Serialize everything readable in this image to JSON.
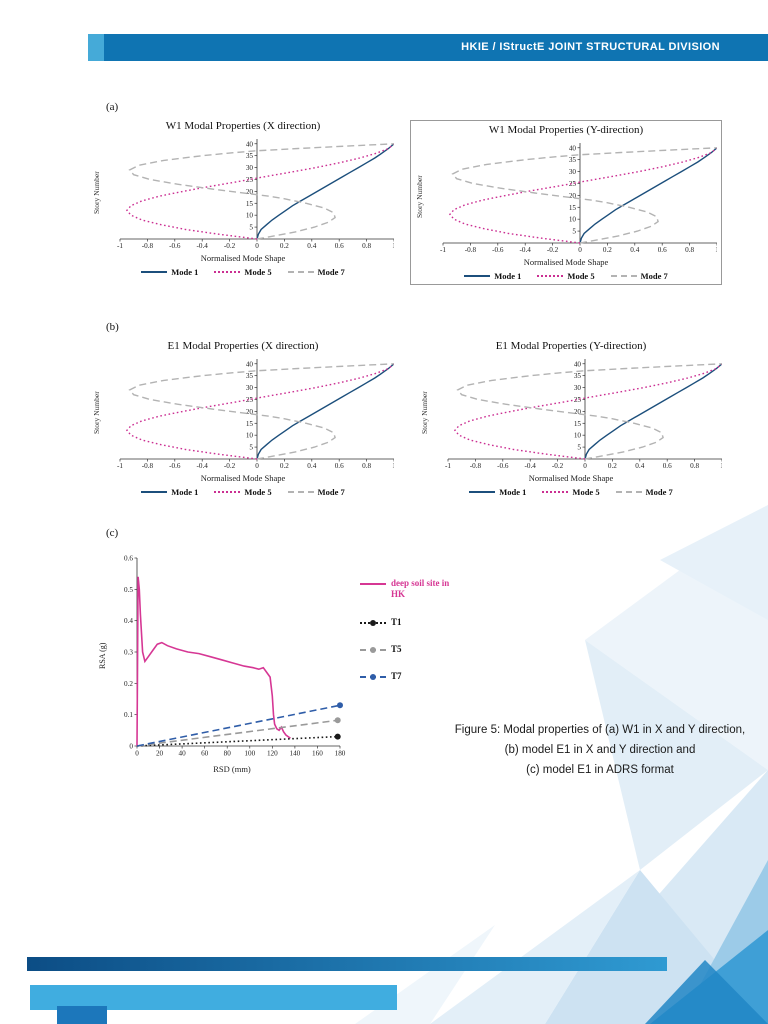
{
  "header": {
    "title": "HKIE / IStructE JOINT STRUCTURAL DIVISION",
    "bar_color": "#0f74b2",
    "accent_color": "#45aad8"
  },
  "sections": {
    "a_label": "(a)",
    "b_label": "(b)",
    "c_label": "(c)"
  },
  "caption": {
    "line1": "Figure 5: Modal properties of (a) W1 in X and Y direction,",
    "line2": "(b) model E1 in X and Y direction and",
    "line3": "(c) model E1 in ADRS format"
  },
  "chart_data": {
    "mode_shape_library": {
      "mode1": {
        "label": "Mode 1",
        "color": "#1c4f7c",
        "dash": "solid",
        "points": [
          [
            0,
            0
          ],
          [
            2,
            0.01
          ],
          [
            4,
            0.03
          ],
          [
            6,
            0.07
          ],
          [
            8,
            0.11
          ],
          [
            10,
            0.16
          ],
          [
            12,
            0.21
          ],
          [
            14,
            0.26
          ],
          [
            16,
            0.32
          ],
          [
            18,
            0.38
          ],
          [
            20,
            0.44
          ],
          [
            22,
            0.5
          ],
          [
            24,
            0.56
          ],
          [
            26,
            0.62
          ],
          [
            28,
            0.68
          ],
          [
            30,
            0.74
          ],
          [
            32,
            0.8
          ],
          [
            34,
            0.86
          ],
          [
            36,
            0.91
          ],
          [
            38,
            0.96
          ],
          [
            40,
            1.0
          ]
        ]
      },
      "mode5": {
        "label": "Mode 5",
        "color": "#cb2f92",
        "dash": "dotted",
        "points": [
          [
            0,
            0
          ],
          [
            2,
            -0.28
          ],
          [
            4,
            -0.52
          ],
          [
            6,
            -0.7
          ],
          [
            8,
            -0.84
          ],
          [
            10,
            -0.92
          ],
          [
            12,
            -0.95
          ],
          [
            14,
            -0.92
          ],
          [
            16,
            -0.84
          ],
          [
            18,
            -0.71
          ],
          [
            20,
            -0.54
          ],
          [
            22,
            -0.35
          ],
          [
            24,
            -0.15
          ],
          [
            26,
            0.04
          ],
          [
            28,
            0.24
          ],
          [
            30,
            0.43
          ],
          [
            32,
            0.6
          ],
          [
            34,
            0.75
          ],
          [
            36,
            0.87
          ],
          [
            38,
            0.96
          ],
          [
            40,
            1.0
          ]
        ]
      },
      "mode7": {
        "label": "Mode 7",
        "color": "#b3b3b3",
        "dash": "dashed",
        "points": [
          [
            0,
            0
          ],
          [
            1,
            0.1
          ],
          [
            3,
            0.28
          ],
          [
            5,
            0.42
          ],
          [
            7,
            0.52
          ],
          [
            9,
            0.57
          ],
          [
            11,
            0.56
          ],
          [
            13,
            0.49
          ],
          [
            15,
            0.36
          ],
          [
            17,
            0.19
          ],
          [
            18,
            0.08
          ],
          [
            19,
            -0.05
          ],
          [
            21,
            -0.33
          ],
          [
            23,
            -0.58
          ],
          [
            25,
            -0.78
          ],
          [
            27,
            -0.9
          ],
          [
            29,
            -0.93
          ],
          [
            31,
            -0.86
          ],
          [
            33,
            -0.68
          ],
          [
            35,
            -0.4
          ],
          [
            36,
            -0.22
          ],
          [
            37,
            -0.02
          ],
          [
            38,
            0.3
          ],
          [
            39,
            0.65
          ],
          [
            40,
            1.0
          ]
        ]
      }
    },
    "mode_axis": {
      "xlabel": "Normalised Mode Shape",
      "ylabel": "Story Number",
      "xlim": [
        -1,
        1
      ],
      "ylim": [
        0,
        42
      ],
      "xticks": [
        "-1",
        "-0.8",
        "-0.6",
        "-0.4",
        "-0.2",
        "0",
        "0.2",
        "0.4",
        "0.6",
        "0.8",
        "1"
      ],
      "yticks": [
        "5",
        "10",
        "15",
        "20",
        "25",
        "30",
        "35",
        "40"
      ]
    },
    "mode_charts": [
      {
        "id": "chart-w1-x",
        "type": "line",
        "title": "W1 Modal Properties (X direction)",
        "boxed": false,
        "series": [
          "mode1",
          "mode5",
          "mode7"
        ]
      },
      {
        "id": "chart-w1-y",
        "type": "line",
        "title": "W1 Modal Properties (Y-direction)",
        "boxed": true,
        "series": [
          "mode1",
          "mode5",
          "mode7"
        ]
      },
      {
        "id": "chart-e1-x",
        "type": "line",
        "title": "E1 Modal Properties (X direction)",
        "boxed": false,
        "series": [
          "mode1",
          "mode5",
          "mode7"
        ]
      },
      {
        "id": "chart-e1-y",
        "type": "line",
        "title": "E1 Modal Properties (Y-direction)",
        "boxed": false,
        "series": [
          "mode1",
          "mode5",
          "mode7"
        ]
      }
    ],
    "adrs_chart": {
      "id": "chart-adrs",
      "type": "line",
      "xlabel": "RSD (mm)",
      "ylabel": "RSA (g)",
      "xlim": [
        0,
        180
      ],
      "ylim": [
        0,
        0.6
      ],
      "xticks": [
        "0",
        "20",
        "40",
        "60",
        "80",
        "100",
        "120",
        "140",
        "160",
        "180"
      ],
      "yticks": [
        "0",
        "0.1",
        "0.2",
        "0.3",
        "0.4",
        "0.5",
        "0.6"
      ],
      "series": [
        {
          "label": "deep soil site in HK",
          "color": "#d63794",
          "label_color": "#d63794",
          "dash": "solid",
          "marker": false,
          "points": [
            [
              0,
              0
            ],
            [
              1,
              0.54
            ],
            [
              2,
              0.5
            ],
            [
              3,
              0.42
            ],
            [
              5,
              0.3
            ],
            [
              7,
              0.27
            ],
            [
              10,
              0.285
            ],
            [
              14,
              0.305
            ],
            [
              18,
              0.325
            ],
            [
              22,
              0.33
            ],
            [
              27,
              0.32
            ],
            [
              35,
              0.31
            ],
            [
              45,
              0.3
            ],
            [
              55,
              0.295
            ],
            [
              65,
              0.285
            ],
            [
              75,
              0.275
            ],
            [
              85,
              0.265
            ],
            [
              95,
              0.255
            ],
            [
              103,
              0.25
            ],
            [
              108,
              0.245
            ],
            [
              112,
              0.25
            ],
            [
              115,
              0.235
            ],
            [
              118,
              0.22
            ],
            [
              120,
              0.16
            ],
            [
              121,
              0.1
            ],
            [
              122,
              0.07
            ],
            [
              124,
              0.055
            ],
            [
              126,
              0.05
            ],
            [
              128,
              0.06
            ],
            [
              130,
              0.045
            ],
            [
              132,
              0.035
            ],
            [
              134,
              0.03
            ],
            [
              136,
              0.025
            ]
          ]
        },
        {
          "label": "T1",
          "color": "#1a1a1a",
          "label_color": "#111111",
          "dash": "dotted",
          "marker": true,
          "points": [
            [
              0,
              0
            ],
            [
              178,
              0.03
            ]
          ]
        },
        {
          "label": "T5",
          "color": "#9a9a9a",
          "label_color": "#111111",
          "dash": "dashed",
          "marker": true,
          "points": [
            [
              0,
              0
            ],
            [
              178,
              0.082
            ]
          ]
        },
        {
          "label": "T7",
          "color": "#2f5da8",
          "label_color": "#111111",
          "dash": "dashed",
          "marker": true,
          "points": [
            [
              0,
              0
            ],
            [
              180,
              0.13
            ]
          ]
        }
      ]
    }
  }
}
